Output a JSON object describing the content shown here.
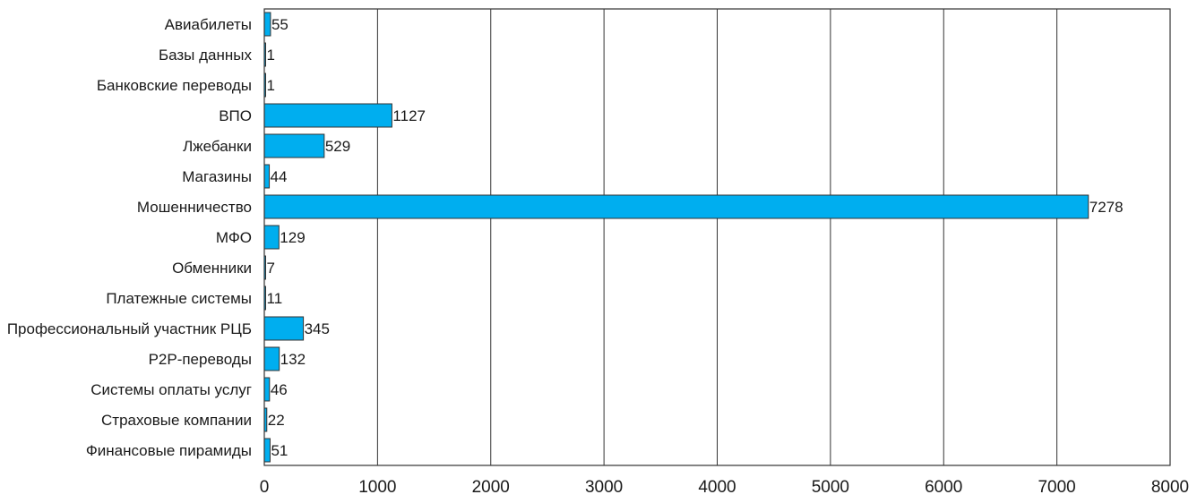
{
  "chart_data": {
    "type": "bar",
    "orientation": "horizontal",
    "categories": [
      "Авиабилеты",
      "Базы данных",
      "Банковские переводы",
      "ВПО",
      "Лжебанки",
      "Магазины",
      "Мошенничество",
      "МФО",
      "Обменники",
      "Платежные системы",
      "Профессиональный участник РЦБ",
      "P2P-переводы",
      "Системы оплаты услуг",
      "Страховые компании",
      "Финансовые пирамиды"
    ],
    "values": [
      55,
      1,
      1,
      1127,
      529,
      44,
      7278,
      129,
      7,
      11,
      345,
      132,
      46,
      22,
      51
    ],
    "data_labels": [
      "55",
      "1",
      "1",
      "1127",
      "529",
      "44",
      "7278",
      "129",
      "7",
      "11",
      "345",
      "132",
      "46",
      "22",
      "51"
    ],
    "xlim": [
      0,
      8000
    ],
    "x_ticks": [
      "0",
      "1000",
      "2000",
      "3000",
      "4000",
      "5000",
      "6000",
      "7000",
      "8000"
    ],
    "grid": "vertical",
    "legend": "none",
    "title": "",
    "xlabel": "",
    "ylabel": "",
    "bar_color": "#00AEEF",
    "bar_edge_color": "#333333"
  }
}
